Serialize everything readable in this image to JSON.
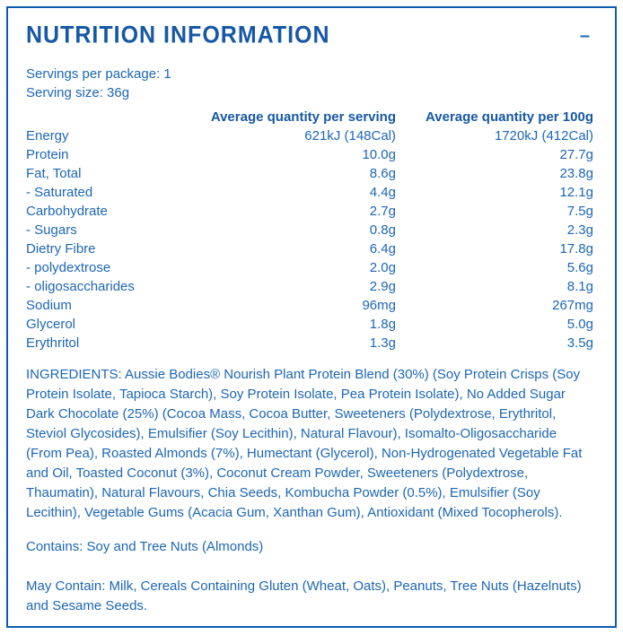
{
  "panel": {
    "title": "NUTRITION INFORMATION",
    "collapse_icon": "–"
  },
  "serving_info": {
    "servings_per_package": "Servings per package: 1",
    "serving_size": "Serving size: 36g"
  },
  "table": {
    "columns": {
      "per_serving": "Average quantity per serving",
      "per_100g": "Average quantity per 100g"
    },
    "rows": [
      {
        "label": "Energy",
        "per_serving": "621kJ (148Cal)",
        "per_100g": "1720kJ (412Cal)"
      },
      {
        "label": "Protein",
        "per_serving": "10.0g",
        "per_100g": "27.7g"
      },
      {
        "label": "Fat, Total",
        "per_serving": "8.6g",
        "per_100g": "23.8g"
      },
      {
        "label": "- Saturated",
        "per_serving": "4.4g",
        "per_100g": "12.1g"
      },
      {
        "label": "Carbohydrate",
        "per_serving": "2.7g",
        "per_100g": "7.5g"
      },
      {
        "label": "- Sugars",
        "per_serving": "0.8g",
        "per_100g": "2.3g"
      },
      {
        "label": "Dietry Fibre",
        "per_serving": "6.4g",
        "per_100g": "17.8g"
      },
      {
        "label": "- polydextrose",
        "per_serving": "2.0g",
        "per_100g": "5.6g"
      },
      {
        "label": "- oligosaccharides",
        "per_serving": "2.9g",
        "per_100g": "8.1g"
      },
      {
        "label": "Sodium",
        "per_serving": "96mg",
        "per_100g": "267mg"
      },
      {
        "label": "Glycerol",
        "per_serving": "1.8g",
        "per_100g": "5.0g"
      },
      {
        "label": "Erythritol",
        "per_serving": "1.3g",
        "per_100g": "3.5g"
      }
    ]
  },
  "ingredients": "INGREDIENTS: Aussie Bodies® Nourish Plant Protein Blend (30%) (Soy Protein Crisps (Soy Protein Isolate, Tapioca Starch), Soy Protein Isolate, Pea Protein Isolate), No Added Sugar Dark Chocolate (25%) (Cocoa Mass, Cocoa Butter, Sweeteners (Polydextrose, Erythritol, Steviol Glycosides), Emulsifier (Soy Lecithin), Natural Flavour), Isomalto-Oligosaccharide (From Pea), Roasted Almonds (7%), Humectant (Glycerol), Non-Hydrogenated Vegetable Fat and Oil, Toasted Coconut (3%), Coconut Cream Powder, Sweeteners (Polydextrose, Thaumatin), Natural Flavours, Chia Seeds, Kombucha Powder (0.5%), Emulsifier (Soy Lecithin), Vegetable Gums (Acacia Gum, Xanthan Gum), Antioxidant (Mixed Tocopherols).",
  "contains": "Contains: Soy and Tree Nuts (Almonds)",
  "may_contain": "May Contain: Milk, Cereals Containing Gluten (Wheat, Oats), Peanuts, Tree Nuts (Hazelnuts) and Sesame Seeds.",
  "colors": {
    "border_blue": "#0e5cac",
    "title_blue": "#1658a6",
    "body_blue": "#1c66b6"
  }
}
